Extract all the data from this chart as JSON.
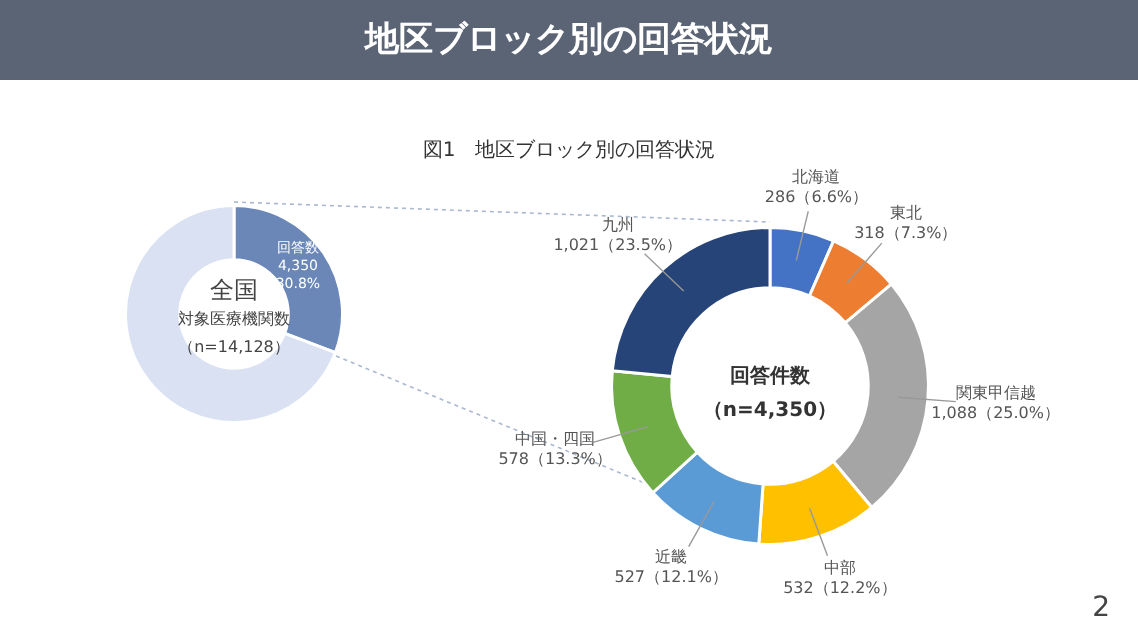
{
  "chart_data": [
    {
      "type": "donut",
      "title": "地区ブロック別の回答状況",
      "subtitle": "図1　地区ブロック別の回答状況",
      "categories": [
        "回答数",
        null
      ],
      "values": [
        4350,
        9778
      ],
      "colors": [
        "#6a87b8",
        "#d9e1f2"
      ],
      "value_labels": [
        "4,350\n30.8%",
        null
      ],
      "annotations": [
        "全国",
        "対象医療機関数",
        "（n=14,128）"
      ],
      "legend": false
    },
    {
      "type": "donut",
      "categories": [
        "北海道",
        "東北",
        "関東甲信越",
        "中部",
        "近畿",
        "中国・四国",
        "九州"
      ],
      "values": [
        286,
        318,
        1088,
        532,
        527,
        578,
        1021
      ],
      "colors": [
        "#4472c4",
        "#ed7d31",
        "#a5a5a5",
        "#ffc000",
        "#5b9bd5",
        "#70ad47",
        "#264478"
      ],
      "value_labels": [
        "286（6.6%）",
        "318（7.3%）",
        "1,088（25.0%）",
        "532（12.2%）",
        "527（12.1%）",
        "578（13.3%）",
        "1,021（23.5%）"
      ],
      "annotations": [
        "回答件数",
        "（n=4,350）",
        "2"
      ],
      "legend": false
    }
  ]
}
